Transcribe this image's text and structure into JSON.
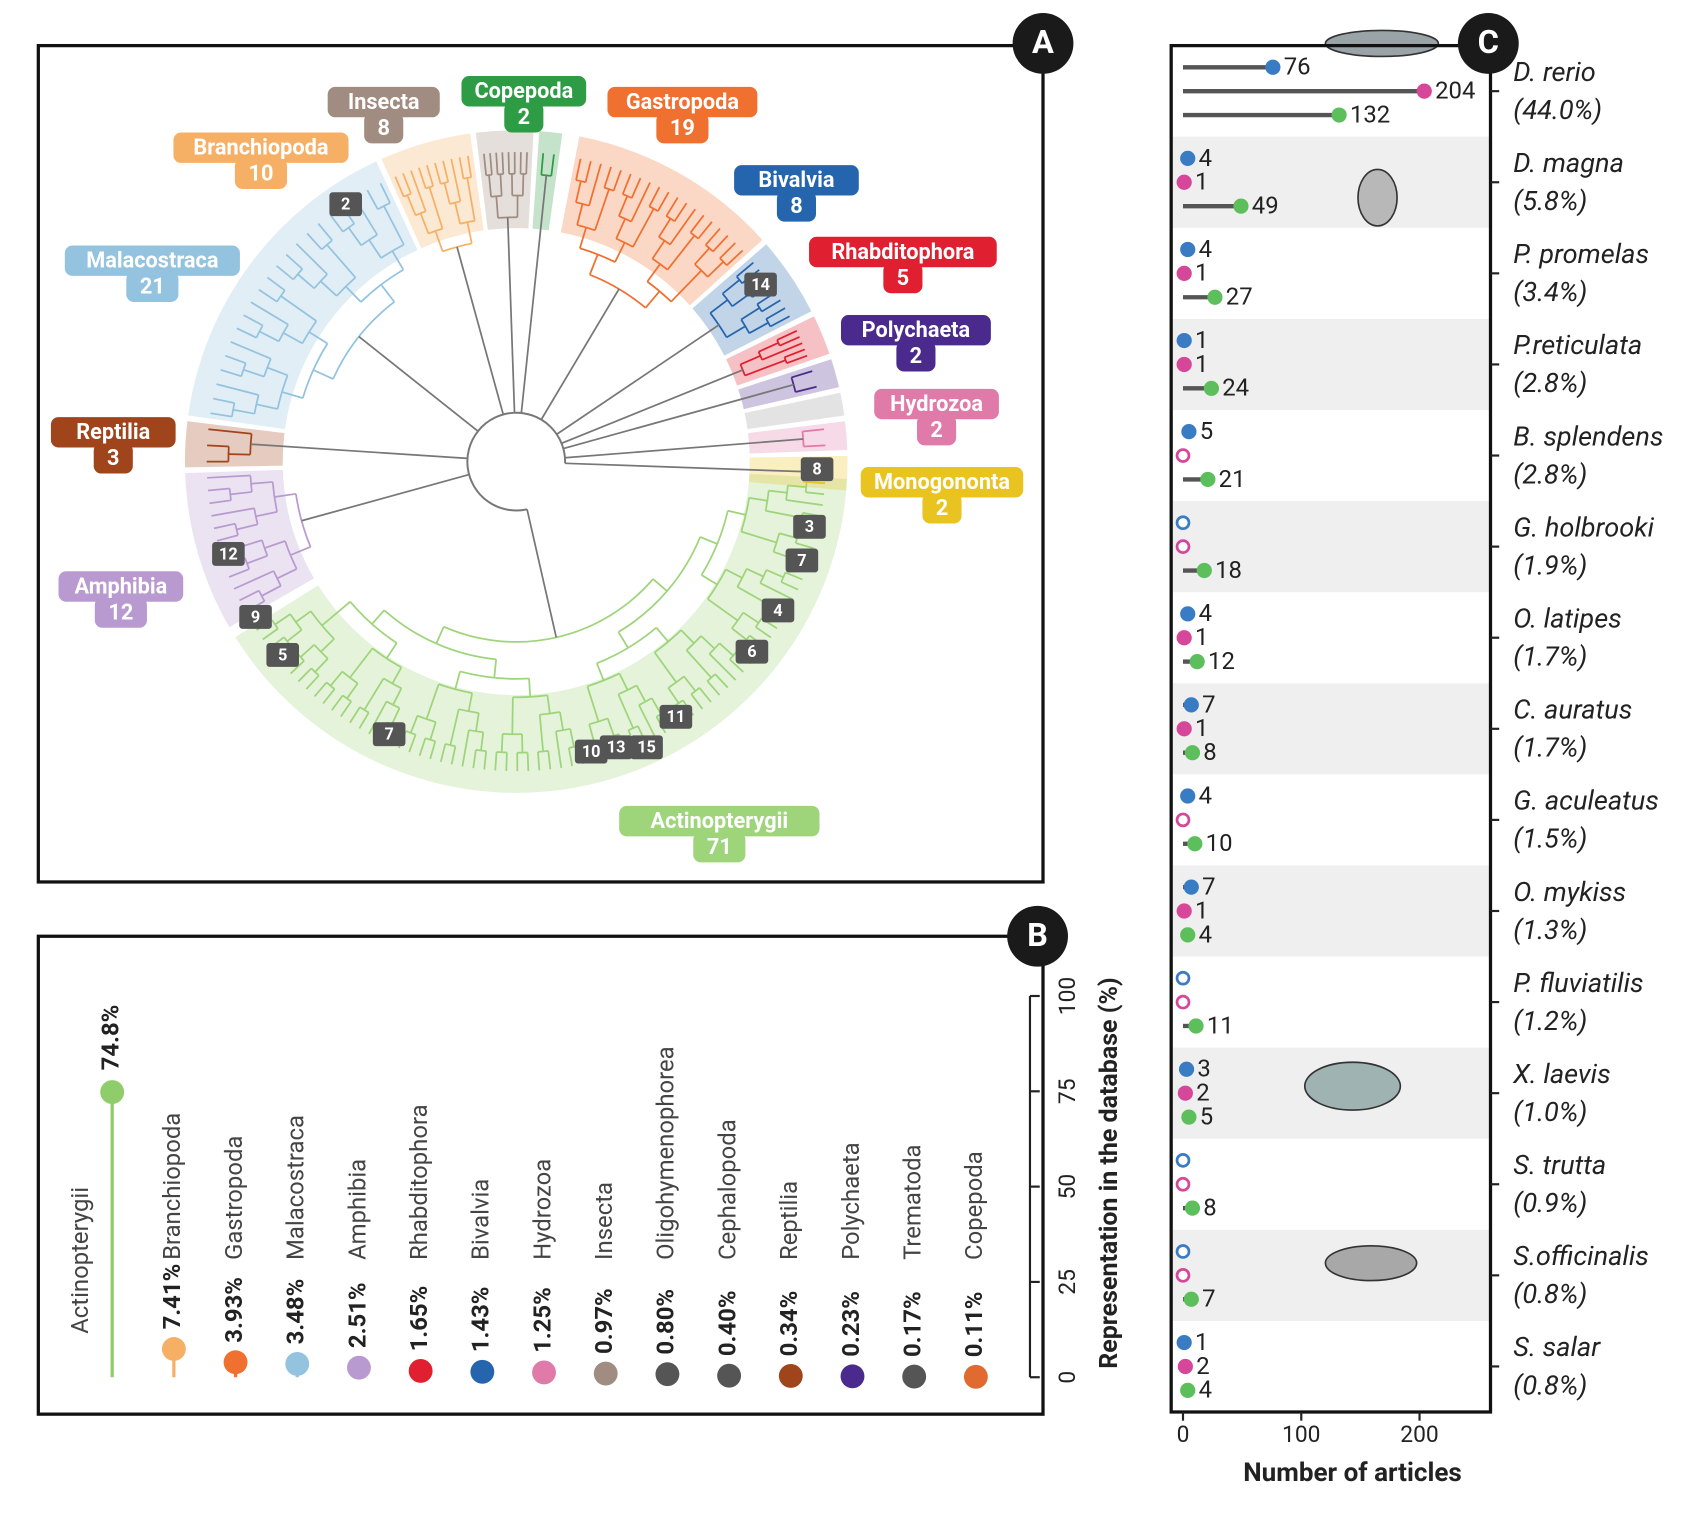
{
  "chart_data": [
    {
      "type": "tree",
      "panel": "A",
      "categories": [
        "Actinopterygii",
        "Amphibia",
        "Reptilia",
        "Malacostraca",
        "Branchiopoda",
        "Insecta",
        "Copepoda",
        "Gastropoda",
        "Bivalvia",
        "Rhabditophora",
        "Polychaeta",
        "Hydrozoa",
        "Monogononta"
      ],
      "values": [
        71,
        12,
        3,
        21,
        10,
        8,
        2,
        19,
        8,
        5,
        2,
        2,
        2
      ],
      "colors": [
        "#9ed47a",
        "#b89ad0",
        "#a0441c",
        "#94c3e0",
        "#f6b066",
        "#a08c80",
        "#2e9b45",
        "#f07030",
        "#2565ad",
        "#e02030",
        "#4a2a8c",
        "#e07aa8",
        "#e9c420"
      ],
      "markers": [
        2,
        14,
        8,
        3,
        7,
        4,
        6,
        11,
        15,
        13,
        10,
        7,
        5,
        9,
        12
      ]
    },
    {
      "type": "lollipop",
      "panel": "B",
      "categories": [
        "Actinopterygii",
        "Branchiopoda",
        "Gastropoda",
        "Malacostraca",
        "Amphibia",
        "Rhabditophora",
        "Bivalvia",
        "Hydrozoa",
        "Insecta",
        "Oligohymenophorea",
        "Cephalopoda",
        "Reptilia",
        "Polychaeta",
        "Trematoda",
        "Copepoda"
      ],
      "values": [
        74.8,
        7.41,
        3.93,
        3.48,
        2.51,
        1.65,
        1.43,
        1.25,
        0.97,
        0.8,
        0.4,
        0.34,
        0.23,
        0.17,
        0.11
      ],
      "value_labels": [
        "74.8%",
        "7.41%",
        "3.93%",
        "3.48%",
        "2.51%",
        "1.65%",
        "1.43%",
        "1.25%",
        "0.97%",
        "0.80%",
        "0.40%",
        "0.34%",
        "0.23%",
        "0.17%",
        "0.11%"
      ],
      "colors": [
        "#8fcc6a",
        "#f6b066",
        "#f07030",
        "#94c3e0",
        "#b89ad0",
        "#e02030",
        "#2565ad",
        "#e07aa8",
        "#a08c80",
        "#555555",
        "#555555",
        "#a0441c",
        "#4a2a8c",
        "#555555",
        "#e06a30"
      ],
      "ylim": [
        0,
        100
      ],
      "yticks": [
        0,
        25,
        50,
        75,
        100
      ],
      "ylabel": "Representation in the database (%)"
    },
    {
      "type": "hlollipop",
      "panel": "C",
      "categories": [
        "D. rerio",
        "D. magna",
        "P. promelas",
        "P.reticulata",
        "B. splendens",
        "G. holbrooki",
        "O. latipes",
        "C. auratus",
        "G. aculeatus",
        "O. mykiss",
        "P. fluviatilis",
        "X. laevis",
        "S. trutta",
        "S.officinalis",
        "S. salar"
      ],
      "category_labels": [
        "(44.0%)",
        "(5.8%)",
        "(3.4%)",
        "(2.8%)",
        "(2.8%)",
        "(1.9%)",
        "(1.7%)",
        "(1.7%)",
        "(1.5%)",
        "(1.3%)",
        "(1.2%)",
        "(1.0%)",
        "(0.9%)",
        "(0.8%)",
        "(0.8%)"
      ],
      "series": [
        {
          "color": "#3a7cc4",
          "values": [
            76,
            4,
            4,
            1,
            5,
            0,
            4,
            7,
            4,
            7,
            0,
            3,
            0,
            0,
            1
          ]
        },
        {
          "color": "#d6479a",
          "values": [
            204,
            1,
            1,
            1,
            0,
            0,
            1,
            1,
            0,
            1,
            0,
            2,
            0,
            0,
            2
          ]
        },
        {
          "color": "#5cbf5c",
          "values": [
            132,
            49,
            27,
            24,
            21,
            18,
            12,
            8,
            10,
            4,
            11,
            5,
            8,
            7,
            4
          ]
        }
      ],
      "xlim": [
        -10,
        260
      ],
      "xticks": [
        0,
        100,
        200
      ],
      "xlabel": "Number of articles"
    }
  ]
}
